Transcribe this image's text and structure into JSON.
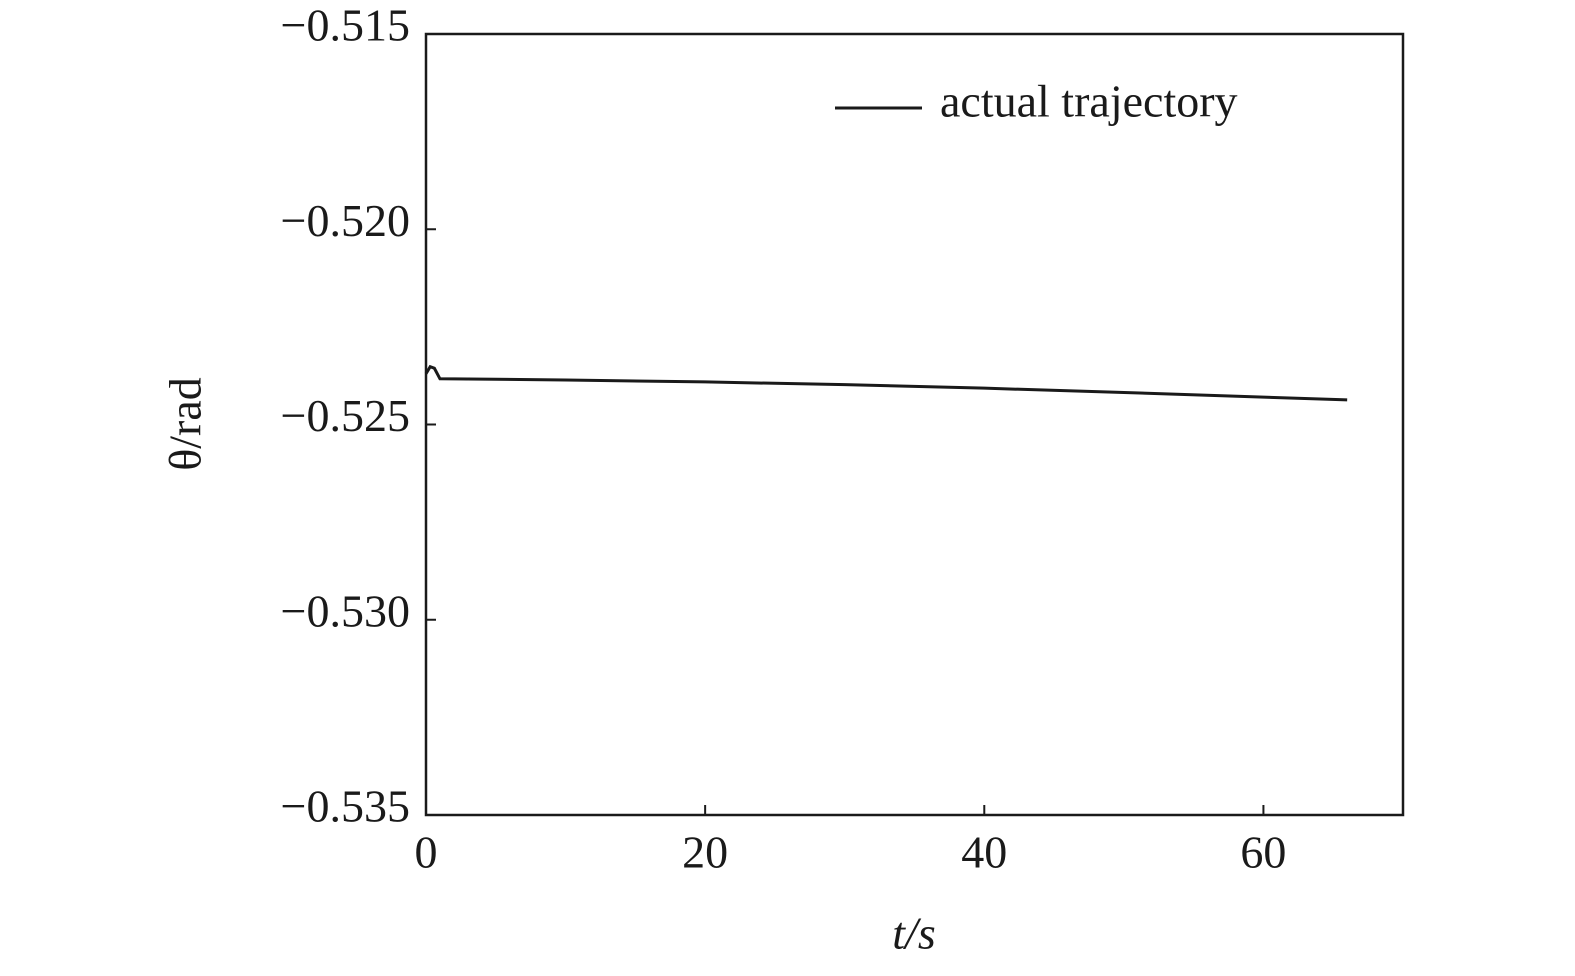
{
  "chart_data": {
    "type": "line",
    "xlabel": "t/s",
    "ylabel": "θ/rad",
    "x": [
      0,
      0.3,
      0.6,
      1,
      5,
      10,
      20,
      30,
      40,
      50,
      60,
      66
    ],
    "series": [
      {
        "name": "actual trajectory",
        "color": "#1a1a1a",
        "values": [
          -0.5237,
          -0.52352,
          -0.52356,
          -0.52383,
          -0.52384,
          -0.52386,
          -0.52391,
          -0.52398,
          -0.52407,
          -0.52418,
          -0.5243,
          -0.52437
        ]
      }
    ],
    "xlim": [
      0,
      70
    ],
    "xticks": [
      0,
      20,
      40,
      60
    ],
    "ylim": [
      -0.535,
      -0.515
    ],
    "yticks": [
      {
        "value": -0.535,
        "label": "−0.535"
      },
      {
        "value": -0.53,
        "label": "−0.530"
      },
      {
        "value": -0.525,
        "label": "−0.525"
      },
      {
        "value": -0.52,
        "label": "−0.520"
      },
      {
        "value": -0.515,
        "label": "−0.515"
      }
    ],
    "legend": "upper right",
    "grid": false
  }
}
